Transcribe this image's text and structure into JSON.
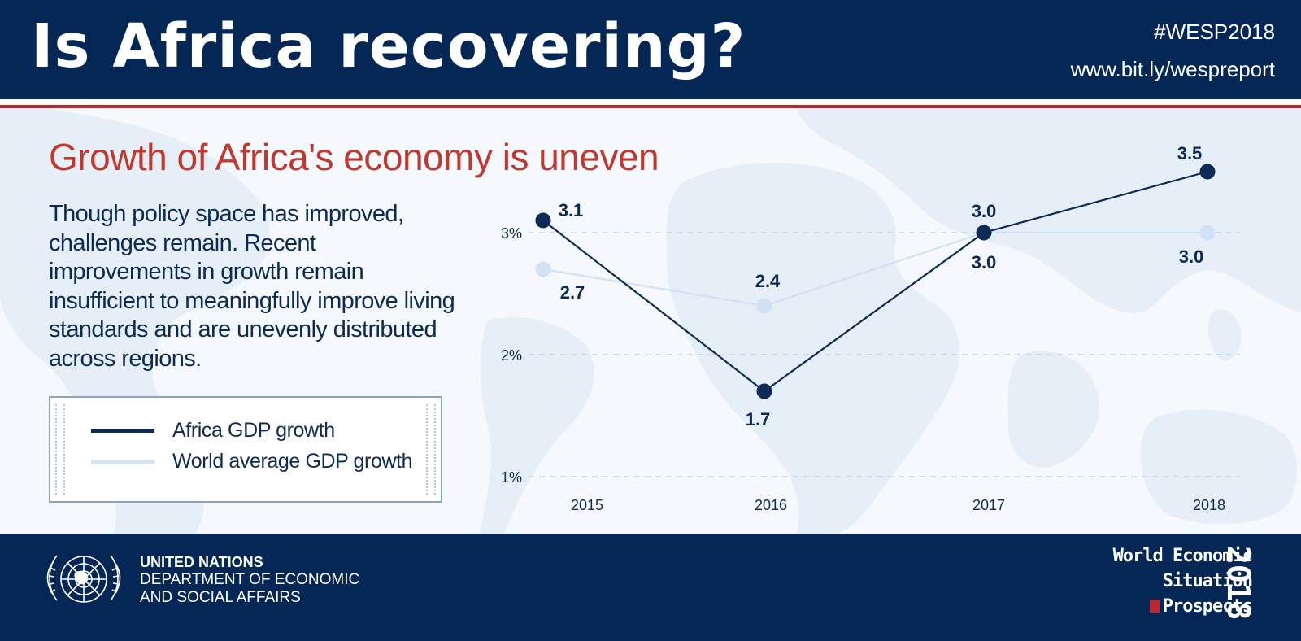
{
  "header": {
    "title": "Is Africa recovering?",
    "hashtag": "#WESP2018",
    "url": "www.bit.ly/wespreport"
  },
  "subtitle": "Growth of Africa's economy is uneven",
  "body_text": "Though policy space has improved, challenges remain. Recent improvements in growth remain insufficient to meaningfully improve living standards and are unevenly distributed across regions.",
  "legend": {
    "africa_label": "Africa GDP growth",
    "world_label": "World average GDP growth"
  },
  "footer": {
    "org_line1": "UNITED NATIONS",
    "org_line2": "DEPARTMENT OF ECONOMIC",
    "org_line3": "AND SOCIAL AFFAIRS",
    "report_line1": "World Economic",
    "report_line2": "Situation",
    "report_line3": "Prospects",
    "report_year": "2018"
  },
  "colors": {
    "header_bg": "#042755",
    "accent_red": "#c0262d",
    "africa_line": "#0e2a55",
    "world_line": "#d2e2f6"
  },
  "chart_data": {
    "type": "line",
    "categories": [
      "2015",
      "2016",
      "2017",
      "2018"
    ],
    "series": [
      {
        "name": "Africa GDP growth",
        "values": [
          3.1,
          1.7,
          3.0,
          3.5
        ],
        "labels": [
          "3.1",
          "1.7",
          "3.0",
          "3.5"
        ],
        "color": "#0e2a55"
      },
      {
        "name": "World average GDP growth",
        "values": [
          2.7,
          2.4,
          3.0,
          3.0
        ],
        "labels": [
          "2.7",
          "2.4",
          "3.0",
          "3.0"
        ],
        "color": "#d2e2f6"
      }
    ],
    "y_ticks": [
      1,
      2,
      3
    ],
    "y_tick_labels": [
      "1%",
      "2%",
      "3%"
    ],
    "ylim": [
      1,
      3.5
    ],
    "grid": true,
    "legend_position": "left"
  }
}
